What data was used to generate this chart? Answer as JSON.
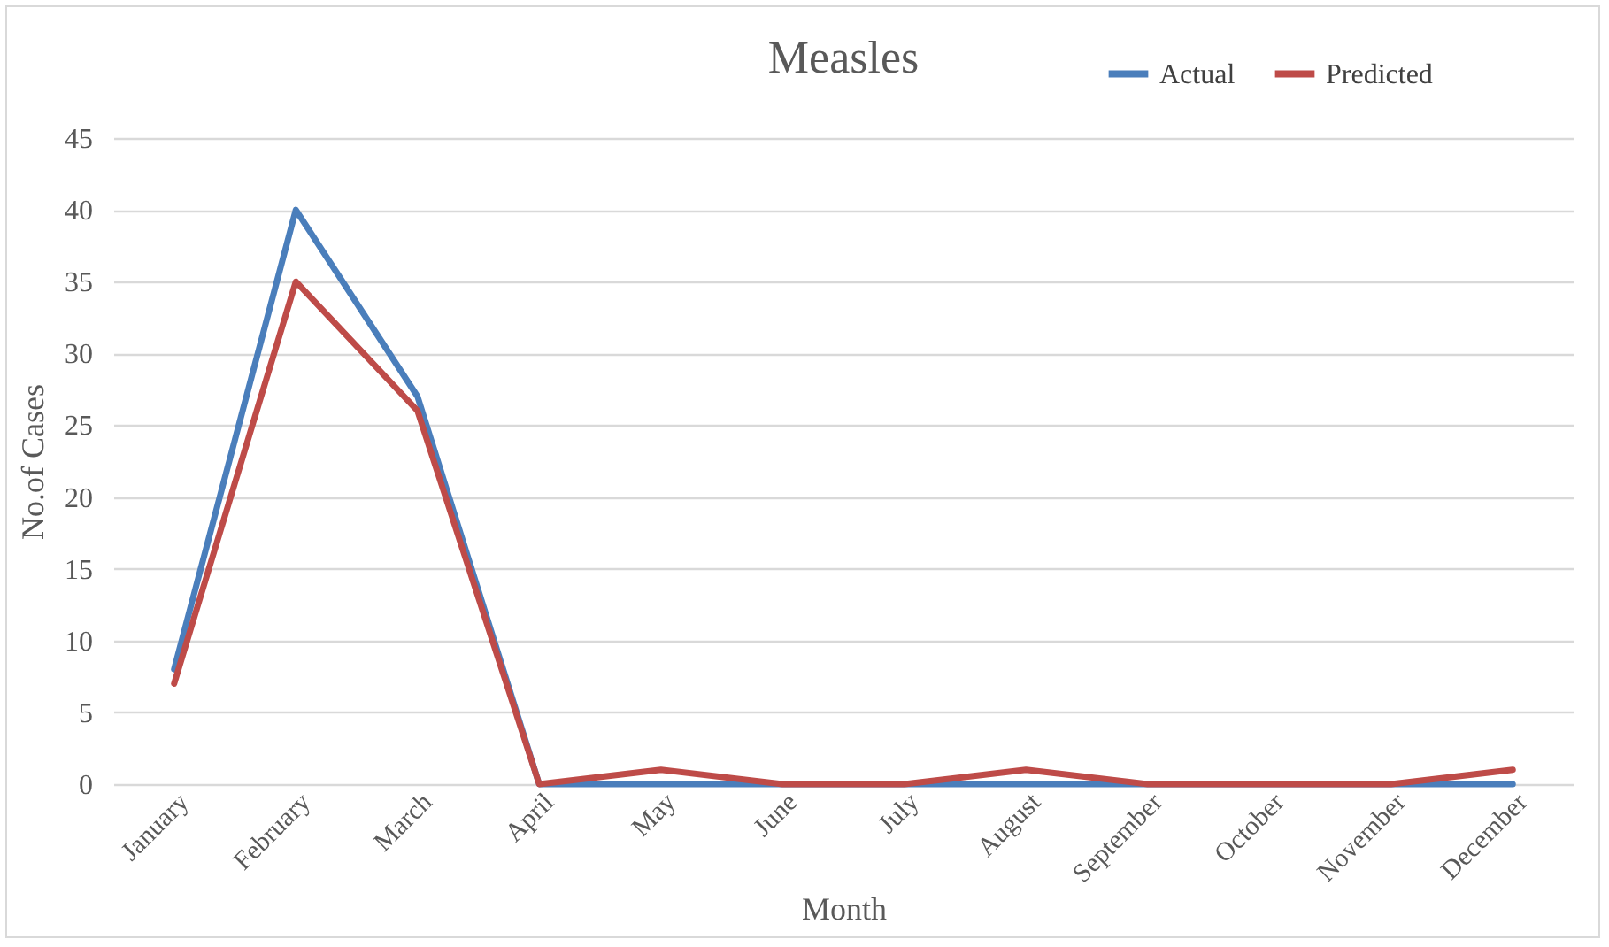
{
  "chart_data": {
    "type": "line",
    "title": "Measles",
    "xlabel": "Month",
    "ylabel": "No.of Cases",
    "categories": [
      "January",
      "February",
      "March",
      "April",
      "May",
      "June",
      "July",
      "August",
      "September",
      "October",
      "November",
      "December"
    ],
    "series": [
      {
        "name": "Actual",
        "color": "#4a7ebb",
        "values": [
          8,
          40,
          27,
          0,
          0,
          0,
          0,
          0,
          0,
          0,
          0,
          0
        ]
      },
      {
        "name": "Predicted",
        "color": "#be4b48",
        "values": [
          7,
          35,
          26,
          0,
          1,
          0,
          0,
          1,
          0,
          0,
          0,
          1
        ]
      }
    ],
    "ylim": [
      0,
      45
    ],
    "yticks": [
      0,
      5,
      10,
      15,
      20,
      25,
      30,
      35,
      40,
      45
    ],
    "grid": "y",
    "legend": "top right",
    "marker": "none",
    "line_style": "solid"
  }
}
